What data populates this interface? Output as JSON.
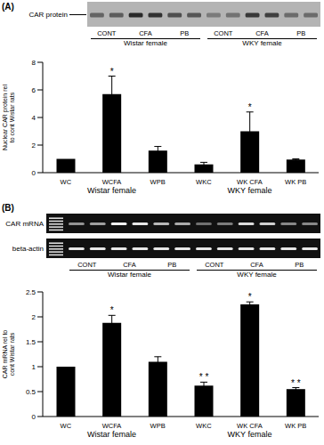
{
  "chart_data": [
    {
      "type": "bar",
      "y_label": "Nuclear CAR protein rel to cont Wistar rats",
      "categories": [
        "WC",
        "WCFA",
        "WPB",
        "WKC",
        "WK CFA",
        "WK PB"
      ],
      "values": [
        1,
        5.7,
        1.6,
        0.6,
        3,
        0.95
      ],
      "errors": [
        0,
        1.3,
        0.3,
        0.15,
        1.4,
        0.05
      ],
      "color": "#000000",
      "ylim": [
        0,
        8
      ],
      "yticks": [
        0,
        2,
        4,
        6,
        8
      ],
      "annotations": [
        {
          "category": "WCFA",
          "text": "*"
        },
        {
          "category": "WK CFA",
          "text": "*"
        }
      ],
      "groups": [
        {
          "label": "Wistar female",
          "categories": [
            "WC",
            "WCFA",
            "WPB"
          ]
        },
        {
          "label": "WKY female",
          "categories": [
            "WKC",
            "WK CFA",
            "WK PB"
          ]
        }
      ]
    },
    {
      "type": "bar",
      "y_label": "CAR mRNA rel to cont Wistar rats",
      "categories": [
        "WC",
        "WCFA",
        "WPB",
        "WKC",
        "WK CFA",
        "WK PB"
      ],
      "values": [
        1,
        1.88,
        1.1,
        0.62,
        2.25,
        0.55
      ],
      "errors": [
        0,
        0.15,
        0.1,
        0.07,
        0.05,
        0.03
      ],
      "color": "#000000",
      "ylim": [
        0,
        2.5
      ],
      "yticks": [
        0,
        0.5,
        1,
        1.5,
        2,
        2.5
      ],
      "annotations": [
        {
          "category": "WCFA",
          "text": "*"
        },
        {
          "category": "WKC",
          "text": "* *"
        },
        {
          "category": "WK CFA",
          "text": "*"
        },
        {
          "category": "WK PB",
          "text": "* *"
        }
      ],
      "groups": [
        {
          "label": "Wistar female",
          "categories": [
            "WC",
            "WCFA",
            "WPB"
          ]
        },
        {
          "label": "WKY female",
          "categories": [
            "WKC",
            "WK CFA",
            "WK PB"
          ]
        }
      ]
    }
  ],
  "panels": [
    {
      "label": "(A)",
      "blot_rows": [
        "CAR protein"
      ],
      "lanes": [
        "CONT",
        "CFA",
        "PB",
        "CONT",
        "CFA",
        "PB"
      ],
      "groups": [
        "Wistar female",
        "WKY female"
      ]
    },
    {
      "label": "(B)",
      "blot_rows": [
        "CAR mRNA",
        "beta-actin"
      ],
      "lanes": [
        "CONT",
        "CFA",
        "PB",
        "CONT",
        "CFA",
        "PB"
      ],
      "groups": [
        "Wistar female",
        "WKY female"
      ]
    }
  ]
}
